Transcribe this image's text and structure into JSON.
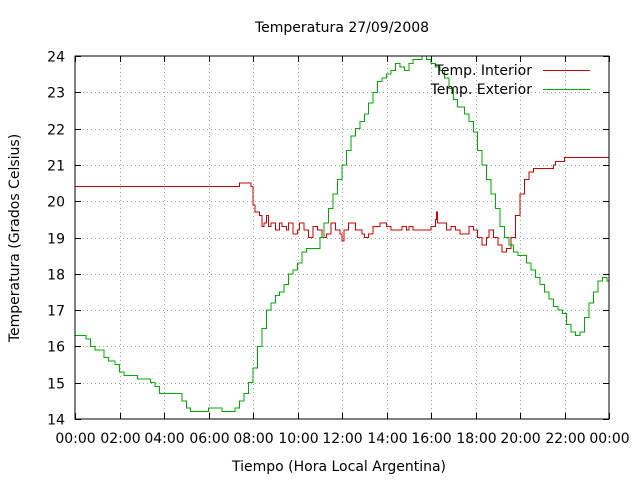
{
  "chart_data": {
    "type": "line",
    "title": "Temperatura 27/09/2008",
    "xlabel": "Tiempo (Hora Local Argentina)",
    "ylabel": "Temperatura (Grados Celsius)",
    "xlim": [
      0,
      24
    ],
    "ylim": [
      14,
      24
    ],
    "x_ticks": [
      "00:00",
      "02:00",
      "04:00",
      "06:00",
      "08:00",
      "10:00",
      "12:00",
      "14:00",
      "16:00",
      "18:00",
      "20:00",
      "22:00",
      "00:00"
    ],
    "y_ticks": [
      "14",
      "15",
      "16",
      "17",
      "18",
      "19",
      "20",
      "21",
      "22",
      "23",
      "24"
    ],
    "grid": true,
    "legend_position": "top-right",
    "series": [
      {
        "name": "Temp. Interior",
        "color": "#cc0000",
        "points": [
          [
            0.0,
            20.4
          ],
          [
            1.0,
            20.4
          ],
          [
            2.0,
            20.4
          ],
          [
            3.0,
            20.4
          ],
          [
            4.0,
            20.4
          ],
          [
            5.0,
            20.4
          ],
          [
            6.0,
            20.4
          ],
          [
            7.0,
            20.4
          ],
          [
            7.3,
            20.4
          ],
          [
            7.4,
            20.5
          ],
          [
            7.8,
            20.5
          ],
          [
            7.9,
            20.4
          ],
          [
            8.0,
            19.9
          ],
          [
            8.1,
            19.7
          ],
          [
            8.2,
            19.7
          ],
          [
            8.3,
            19.6
          ],
          [
            8.4,
            19.3
          ],
          [
            8.5,
            19.4
          ],
          [
            8.6,
            19.6
          ],
          [
            8.7,
            19.3
          ],
          [
            8.8,
            19.4
          ],
          [
            9.0,
            19.2
          ],
          [
            9.2,
            19.4
          ],
          [
            9.3,
            19.3
          ],
          [
            9.5,
            19.2
          ],
          [
            9.6,
            19.4
          ],
          [
            9.8,
            19.1
          ],
          [
            10.0,
            19.2
          ],
          [
            10.1,
            19.4
          ],
          [
            10.3,
            19.2
          ],
          [
            10.5,
            19.0
          ],
          [
            10.7,
            19.3
          ],
          [
            10.9,
            19.2
          ],
          [
            11.1,
            19.0
          ],
          [
            11.3,
            19.1
          ],
          [
            11.5,
            19.4
          ],
          [
            11.7,
            19.2
          ],
          [
            11.9,
            19.1
          ],
          [
            12.0,
            18.9
          ],
          [
            12.1,
            19.2
          ],
          [
            12.3,
            19.4
          ],
          [
            12.6,
            19.2
          ],
          [
            12.9,
            19.1
          ],
          [
            13.0,
            19.0
          ],
          [
            13.2,
            19.1
          ],
          [
            13.4,
            19.3
          ],
          [
            13.7,
            19.4
          ],
          [
            14.0,
            19.3
          ],
          [
            14.2,
            19.2
          ],
          [
            14.5,
            19.2
          ],
          [
            14.7,
            19.3
          ],
          [
            14.9,
            19.2
          ],
          [
            15.0,
            19.3
          ],
          [
            15.2,
            19.2
          ],
          [
            15.5,
            19.2
          ],
          [
            15.8,
            19.2
          ],
          [
            16.0,
            19.3
          ],
          [
            16.2,
            19.5
          ],
          [
            16.25,
            19.7
          ],
          [
            16.3,
            19.4
          ],
          [
            16.5,
            19.4
          ],
          [
            16.7,
            19.2
          ],
          [
            16.9,
            19.3
          ],
          [
            17.1,
            19.2
          ],
          [
            17.3,
            19.1
          ],
          [
            17.5,
            19.1
          ],
          [
            17.7,
            19.3
          ],
          [
            17.9,
            19.2
          ],
          [
            18.1,
            19.0
          ],
          [
            18.3,
            18.8
          ],
          [
            18.5,
            19.0
          ],
          [
            18.6,
            19.2
          ],
          [
            18.8,
            19.0
          ],
          [
            19.0,
            18.8
          ],
          [
            19.2,
            18.6
          ],
          [
            19.4,
            18.7
          ],
          [
            19.6,
            19.0
          ],
          [
            19.8,
            19.6
          ],
          [
            20.0,
            20.2
          ],
          [
            20.2,
            20.6
          ],
          [
            20.4,
            20.8
          ],
          [
            20.6,
            20.9
          ],
          [
            20.8,
            20.9
          ],
          [
            21.2,
            20.9
          ],
          [
            21.5,
            21.0
          ],
          [
            21.6,
            21.1
          ],
          [
            21.9,
            21.1
          ],
          [
            22.0,
            21.2
          ],
          [
            23.0,
            21.2
          ],
          [
            24.0,
            21.2
          ]
        ]
      },
      {
        "name": "Temp. Exterior",
        "color": "#00aa00",
        "points": [
          [
            0.0,
            16.3
          ],
          [
            0.3,
            16.3
          ],
          [
            0.5,
            16.2
          ],
          [
            0.7,
            16.0
          ],
          [
            0.9,
            15.9
          ],
          [
            1.1,
            15.9
          ],
          [
            1.3,
            15.7
          ],
          [
            1.5,
            15.6
          ],
          [
            1.8,
            15.5
          ],
          [
            2.0,
            15.3
          ],
          [
            2.2,
            15.2
          ],
          [
            2.5,
            15.2
          ],
          [
            2.8,
            15.1
          ],
          [
            3.2,
            15.1
          ],
          [
            3.4,
            15.0
          ],
          [
            3.6,
            14.9
          ],
          [
            3.8,
            14.7
          ],
          [
            4.2,
            14.7
          ],
          [
            4.5,
            14.7
          ],
          [
            4.8,
            14.5
          ],
          [
            5.0,
            14.3
          ],
          [
            5.2,
            14.2
          ],
          [
            5.5,
            14.2
          ],
          [
            5.8,
            14.2
          ],
          [
            6.0,
            14.3
          ],
          [
            6.3,
            14.3
          ],
          [
            6.5,
            14.3
          ],
          [
            6.6,
            14.2
          ],
          [
            6.8,
            14.2
          ],
          [
            7.0,
            14.2
          ],
          [
            7.2,
            14.3
          ],
          [
            7.4,
            14.5
          ],
          [
            7.6,
            14.7
          ],
          [
            7.8,
            15.0
          ],
          [
            8.0,
            15.4
          ],
          [
            8.2,
            16.0
          ],
          [
            8.4,
            16.5
          ],
          [
            8.6,
            17.0
          ],
          [
            8.8,
            17.2
          ],
          [
            9.0,
            17.4
          ],
          [
            9.2,
            17.5
          ],
          [
            9.4,
            17.7
          ],
          [
            9.6,
            18.0
          ],
          [
            9.8,
            18.1
          ],
          [
            10.0,
            18.3
          ],
          [
            10.2,
            18.6
          ],
          [
            10.4,
            18.7
          ],
          [
            10.8,
            18.7
          ],
          [
            11.0,
            19.0
          ],
          [
            11.2,
            19.4
          ],
          [
            11.4,
            19.8
          ],
          [
            11.6,
            20.2
          ],
          [
            11.8,
            20.6
          ],
          [
            12.0,
            21.0
          ],
          [
            12.2,
            21.4
          ],
          [
            12.4,
            21.8
          ],
          [
            12.6,
            22.0
          ],
          [
            12.8,
            22.2
          ],
          [
            13.0,
            22.4
          ],
          [
            13.2,
            22.7
          ],
          [
            13.4,
            23.0
          ],
          [
            13.6,
            23.3
          ],
          [
            13.8,
            23.4
          ],
          [
            14.0,
            23.5
          ],
          [
            14.2,
            23.6
          ],
          [
            14.4,
            23.8
          ],
          [
            14.6,
            23.7
          ],
          [
            14.8,
            23.6
          ],
          [
            15.0,
            23.8
          ],
          [
            15.2,
            23.9
          ],
          [
            15.4,
            23.9
          ],
          [
            15.6,
            24.0
          ],
          [
            15.8,
            23.9
          ],
          [
            16.0,
            23.8
          ],
          [
            16.2,
            23.7
          ],
          [
            16.4,
            23.6
          ],
          [
            16.6,
            23.4
          ],
          [
            16.8,
            23.1
          ],
          [
            17.0,
            22.8
          ],
          [
            17.2,
            22.6
          ],
          [
            17.5,
            22.4
          ],
          [
            17.7,
            22.2
          ],
          [
            17.9,
            21.9
          ],
          [
            18.1,
            21.4
          ],
          [
            18.3,
            21.0
          ],
          [
            18.5,
            20.6
          ],
          [
            18.7,
            20.2
          ],
          [
            18.9,
            19.8
          ],
          [
            19.1,
            19.3
          ],
          [
            19.3,
            19.0
          ],
          [
            19.5,
            18.8
          ],
          [
            19.7,
            18.6
          ],
          [
            19.9,
            18.5
          ],
          [
            20.1,
            18.5
          ],
          [
            20.3,
            18.3
          ],
          [
            20.5,
            18.1
          ],
          [
            20.7,
            17.9
          ],
          [
            20.9,
            17.7
          ],
          [
            21.1,
            17.5
          ],
          [
            21.3,
            17.3
          ],
          [
            21.5,
            17.1
          ],
          [
            21.7,
            17.0
          ],
          [
            21.9,
            16.9
          ],
          [
            22.1,
            16.6
          ],
          [
            22.3,
            16.4
          ],
          [
            22.5,
            16.3
          ],
          [
            22.7,
            16.4
          ],
          [
            22.9,
            16.8
          ],
          [
            23.1,
            17.2
          ],
          [
            23.3,
            17.5
          ],
          [
            23.5,
            17.8
          ],
          [
            23.7,
            17.9
          ],
          [
            23.9,
            17.8
          ],
          [
            24.0,
            17.6
          ]
        ]
      }
    ]
  }
}
